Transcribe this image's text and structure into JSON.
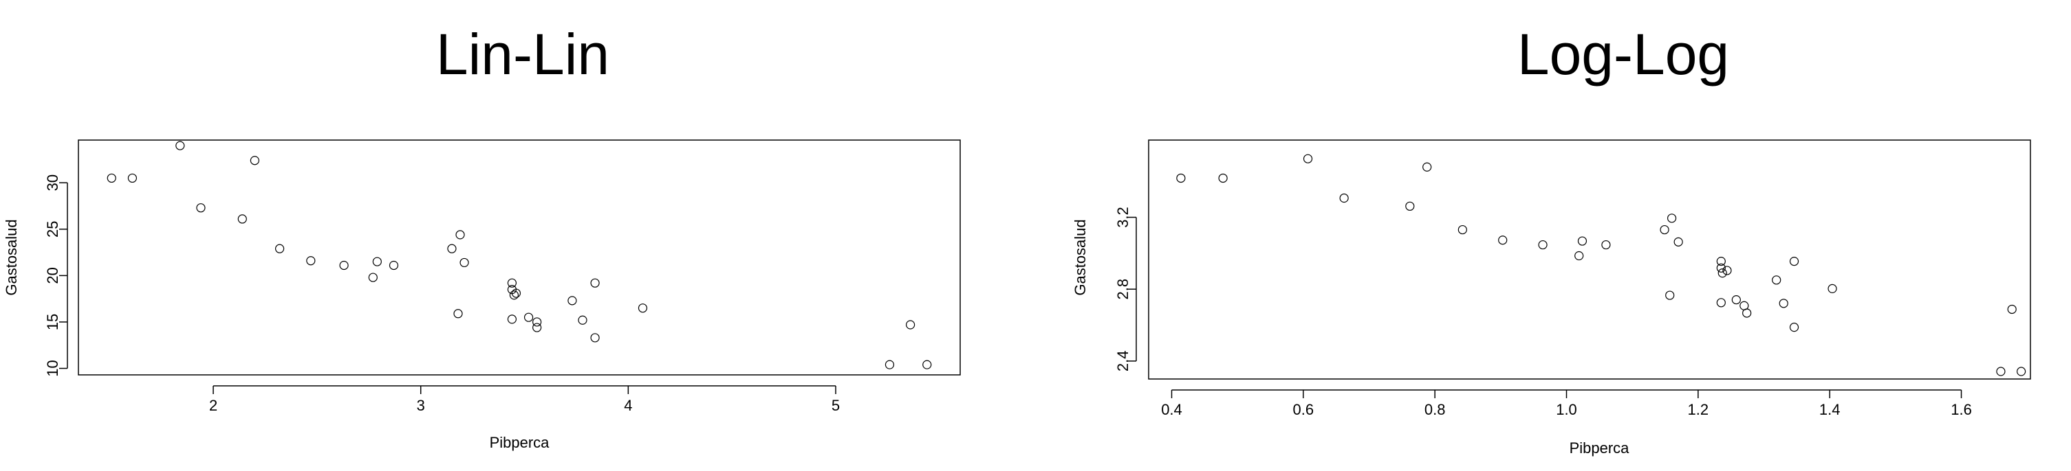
{
  "chart_data": [
    {
      "type": "scatter",
      "title": "Lin-Lin",
      "xlabel": "Pibperca",
      "ylabel": "Gastosalud",
      "xlim": [
        1.35,
        5.6
      ],
      "ylim": [
        9.3,
        34.6
      ],
      "x_ticks": [
        2,
        3,
        4,
        5
      ],
      "y_ticks": [
        10,
        15,
        20,
        25,
        30
      ],
      "x_tick_labels": [
        "2",
        "3",
        "4",
        "5"
      ],
      "y_tick_labels": [
        "10",
        "15",
        "20",
        "25",
        "30"
      ],
      "grid": false,
      "color": "#000000",
      "points": [
        [
          1.51,
          30.5
        ],
        [
          1.61,
          30.5
        ],
        [
          1.84,
          34.0
        ],
        [
          1.94,
          27.3
        ],
        [
          2.14,
          26.1
        ],
        [
          2.2,
          32.4
        ],
        [
          2.32,
          22.9
        ],
        [
          2.47,
          21.6
        ],
        [
          2.63,
          21.1
        ],
        [
          2.77,
          19.8
        ],
        [
          2.79,
          21.5
        ],
        [
          2.87,
          21.1
        ],
        [
          3.15,
          22.9
        ],
        [
          3.18,
          15.9
        ],
        [
          3.19,
          24.4
        ],
        [
          3.21,
          21.4
        ],
        [
          3.44,
          19.2
        ],
        [
          3.44,
          18.5
        ],
        [
          3.45,
          17.9
        ],
        [
          3.46,
          18.1
        ],
        [
          3.44,
          15.3
        ],
        [
          3.52,
          15.5
        ],
        [
          3.56,
          15.0
        ],
        [
          3.56,
          14.4
        ],
        [
          3.73,
          17.3
        ],
        [
          3.78,
          15.2
        ],
        [
          3.84,
          13.3
        ],
        [
          3.84,
          19.2
        ],
        [
          4.07,
          16.5
        ],
        [
          5.26,
          10.4
        ],
        [
          5.36,
          14.7
        ],
        [
          5.44,
          10.4
        ]
      ]
    },
    {
      "type": "scatter",
      "title": "Log-Log",
      "xlabel": "Pibperca",
      "ylabel": "Gastosalud",
      "xlim": [
        0.365,
        1.705
      ],
      "ylim": [
        2.3,
        3.63
      ],
      "x_ticks": [
        0.4,
        0.6,
        0.8,
        1.0,
        1.2,
        1.4,
        1.6
      ],
      "y_ticks": [
        2.4,
        2.8,
        3.2
      ],
      "x_tick_labels": [
        "0.4",
        "0.6",
        "0.8",
        "1.0",
        "1.2",
        "1.4",
        "1.6"
      ],
      "y_tick_labels": [
        "2.4",
        "2.8",
        "3.2"
      ],
      "grid": false,
      "color": "#000000",
      "points": [
        [
          0.414,
          3.418
        ],
        [
          0.478,
          3.418
        ],
        [
          0.607,
          3.526
        ],
        [
          0.662,
          3.307
        ],
        [
          0.762,
          3.262
        ],
        [
          0.788,
          3.48
        ],
        [
          0.842,
          3.131
        ],
        [
          0.903,
          3.073
        ],
        [
          0.964,
          3.047
        ],
        [
          1.019,
          2.986
        ],
        [
          1.024,
          3.068
        ],
        [
          1.06,
          3.047
        ],
        [
          1.149,
          3.131
        ],
        [
          1.157,
          2.766
        ],
        [
          1.16,
          3.195
        ],
        [
          1.17,
          3.063
        ],
        [
          1.235,
          2.955
        ],
        [
          1.235,
          2.918
        ],
        [
          1.237,
          2.89
        ],
        [
          1.244,
          2.904
        ],
        [
          1.235,
          2.725
        ],
        [
          1.258,
          2.741
        ],
        [
          1.27,
          2.708
        ],
        [
          1.274,
          2.667
        ],
        [
          1.319,
          2.851
        ],
        [
          1.33,
          2.721
        ],
        [
          1.346,
          2.588
        ],
        [
          1.346,
          2.955
        ],
        [
          1.404,
          2.803
        ],
        [
          1.66,
          2.342
        ],
        [
          1.677,
          2.688
        ],
        [
          1.691,
          2.342
        ]
      ]
    }
  ]
}
